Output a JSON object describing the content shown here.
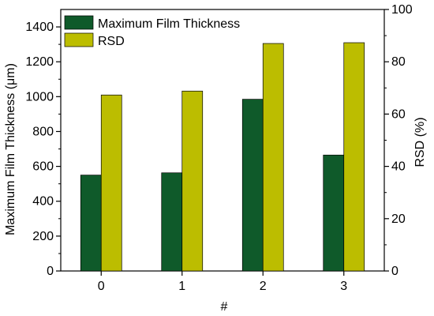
{
  "chart_data": {
    "type": "bar",
    "categories": [
      "0",
      "1",
      "2",
      "3"
    ],
    "xlabel": "#",
    "y_left": {
      "label": "Maximum Film Thickness (μm)",
      "ylim": [
        0,
        1500
      ],
      "ticks": [
        0,
        200,
        400,
        600,
        800,
        1000,
        1200,
        1400
      ]
    },
    "y_right": {
      "label": "RSD (%)",
      "ylim": [
        0,
        100
      ],
      "ticks": [
        0,
        20,
        40,
        60,
        80,
        100
      ]
    },
    "series": [
      {
        "name": "Maximum Film Thickness",
        "axis": "left",
        "color": "#0f5a2a",
        "values": [
          550,
          563,
          985,
          665
        ]
      },
      {
        "name": "RSD",
        "axis": "right",
        "color": "#bcbd00",
        "values": [
          67.3,
          68.8,
          87.0,
          87.3
        ]
      }
    ],
    "legend": {
      "placement": "top-left"
    },
    "grid": false
  }
}
